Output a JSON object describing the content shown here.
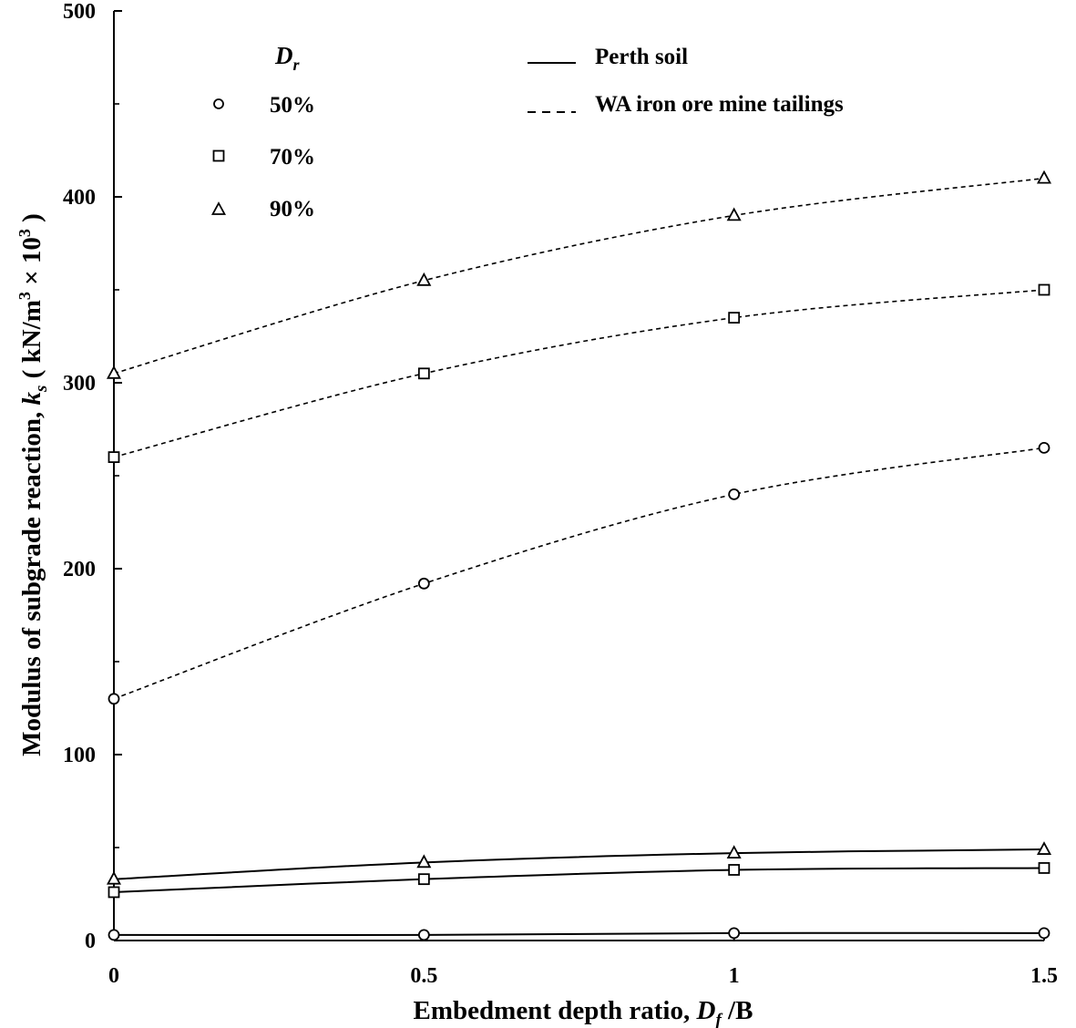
{
  "chart_data": {
    "type": "line",
    "xlabel": "Embedment depth ratio, D_f /B",
    "xlabel_parts": {
      "prefix": "Embedment depth ratio, ",
      "var": "D",
      "sub": "f",
      "suffix": " /B"
    },
    "ylabel": "Modulus of subgrade reaction, k_s ( kN/m³ × 10³ )",
    "ylabel_parts": {
      "prefix": "Modulus of subgrade reaction, ",
      "var": "k",
      "sub": "s",
      "mid": " ( kN/m",
      "sup1": "3",
      "mid2": " × 10",
      "sup2": "3",
      "suffix": " )"
    },
    "xlim": [
      0,
      1.5
    ],
    "ylim": [
      0,
      500
    ],
    "x_ticks": [
      0,
      0.5,
      1,
      1.5
    ],
    "x_tick_labels": [
      "0",
      "0.5",
      "1",
      "1.5"
    ],
    "y_ticks": [
      0,
      100,
      200,
      300,
      400,
      500
    ],
    "y_tick_labels": [
      "0",
      "100",
      "200",
      "300",
      "400",
      "500"
    ],
    "grid": false,
    "legend_placement": "top",
    "legend": {
      "marker_title": "Dr",
      "marker_title_parts": {
        "var": "D",
        "sub": "r"
      },
      "markers": [
        {
          "symbol": "circle",
          "label": "50%"
        },
        {
          "symbol": "square",
          "label": "70%"
        },
        {
          "symbol": "triangle",
          "label": "90%"
        }
      ],
      "lines": [
        {
          "style": "solid",
          "label": "Perth soil"
        },
        {
          "style": "dashed",
          "label": "WA iron ore mine tailings"
        }
      ]
    },
    "x": [
      0,
      0.5,
      1,
      1.5
    ],
    "series": [
      {
        "soil": "WA iron ore mine tailings",
        "dr": "90%",
        "marker": "triangle",
        "line": "dashed",
        "values": [
          305,
          355,
          390,
          410
        ]
      },
      {
        "soil": "WA iron ore mine tailings",
        "dr": "70%",
        "marker": "square",
        "line": "dashed",
        "values": [
          260,
          305,
          335,
          350
        ]
      },
      {
        "soil": "WA iron ore mine tailings",
        "dr": "50%",
        "marker": "circle",
        "line": "dashed",
        "values": [
          130,
          192,
          240,
          265
        ]
      },
      {
        "soil": "Perth soil",
        "dr": "90%",
        "marker": "triangle",
        "line": "solid",
        "values": [
          33,
          42,
          47,
          49
        ]
      },
      {
        "soil": "Perth soil",
        "dr": "70%",
        "marker": "square",
        "line": "solid",
        "values": [
          26,
          33,
          38,
          39
        ]
      },
      {
        "soil": "Perth soil",
        "dr": "50%",
        "marker": "circle",
        "line": "solid",
        "values": [
          3,
          3,
          4,
          4
        ]
      }
    ]
  }
}
